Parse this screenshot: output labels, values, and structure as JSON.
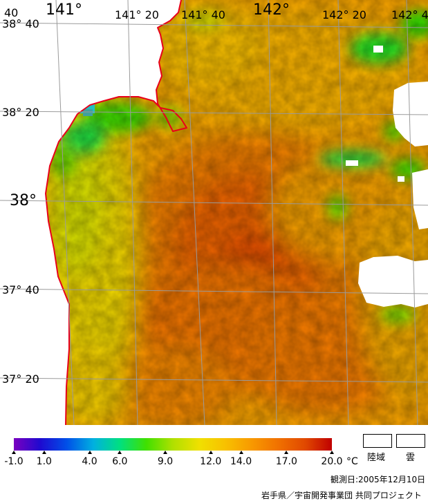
{
  "map": {
    "land_color": "#ffffff",
    "coast_color": "#e8001a",
    "grid_color": "#9a9a9a",
    "sst_palette": [
      "#7a00c0",
      "#1e0ad0",
      "#0050e8",
      "#00b0e0",
      "#00e080",
      "#40e000",
      "#b0e000",
      "#f0e000",
      "#f8c000",
      "#f89800",
      "#f07000",
      "#e04800",
      "#c00000"
    ],
    "longitude_labels": [
      {
        "text": "40",
        "size": "small"
      },
      {
        "text": "141°",
        "size": "big"
      },
      {
        "text": "141° 20",
        "size": "small"
      },
      {
        "text": "141° 40",
        "size": "small"
      },
      {
        "text": "142°",
        "size": "big"
      },
      {
        "text": "142° 20",
        "size": "small"
      },
      {
        "text": "142° 4",
        "size": "small"
      }
    ],
    "latitude_labels": [
      {
        "text": "38° 40",
        "size": "small"
      },
      {
        "text": "38° 20",
        "size": "small"
      },
      {
        "text": "38°",
        "size": "big"
      },
      {
        "text": "37° 40",
        "size": "small"
      },
      {
        "text": "37° 20",
        "size": "small"
      }
    ]
  },
  "colorbar": {
    "min": -1.0,
    "max": 20.0,
    "unit": "°C",
    "ticks": [
      {
        "value": -1.0,
        "label": "-1.0"
      },
      {
        "value": 1.0,
        "label": "1.0"
      },
      {
        "value": 4.0,
        "label": "4.0"
      },
      {
        "value": 6.0,
        "label": "6.0"
      },
      {
        "value": 9.0,
        "label": "9.0"
      },
      {
        "value": 12.0,
        "label": "12.0"
      },
      {
        "value": 14.0,
        "label": "14.0"
      },
      {
        "value": 17.0,
        "label": "17.0"
      },
      {
        "value": 20.0,
        "label": "20.0"
      }
    ]
  },
  "legend": {
    "land": "陸域",
    "cloud": "雲"
  },
  "footer": {
    "date": "観測日:2005年12月10日",
    "credit": "岩手県／宇宙開発事業団 共同プロジェクト"
  }
}
